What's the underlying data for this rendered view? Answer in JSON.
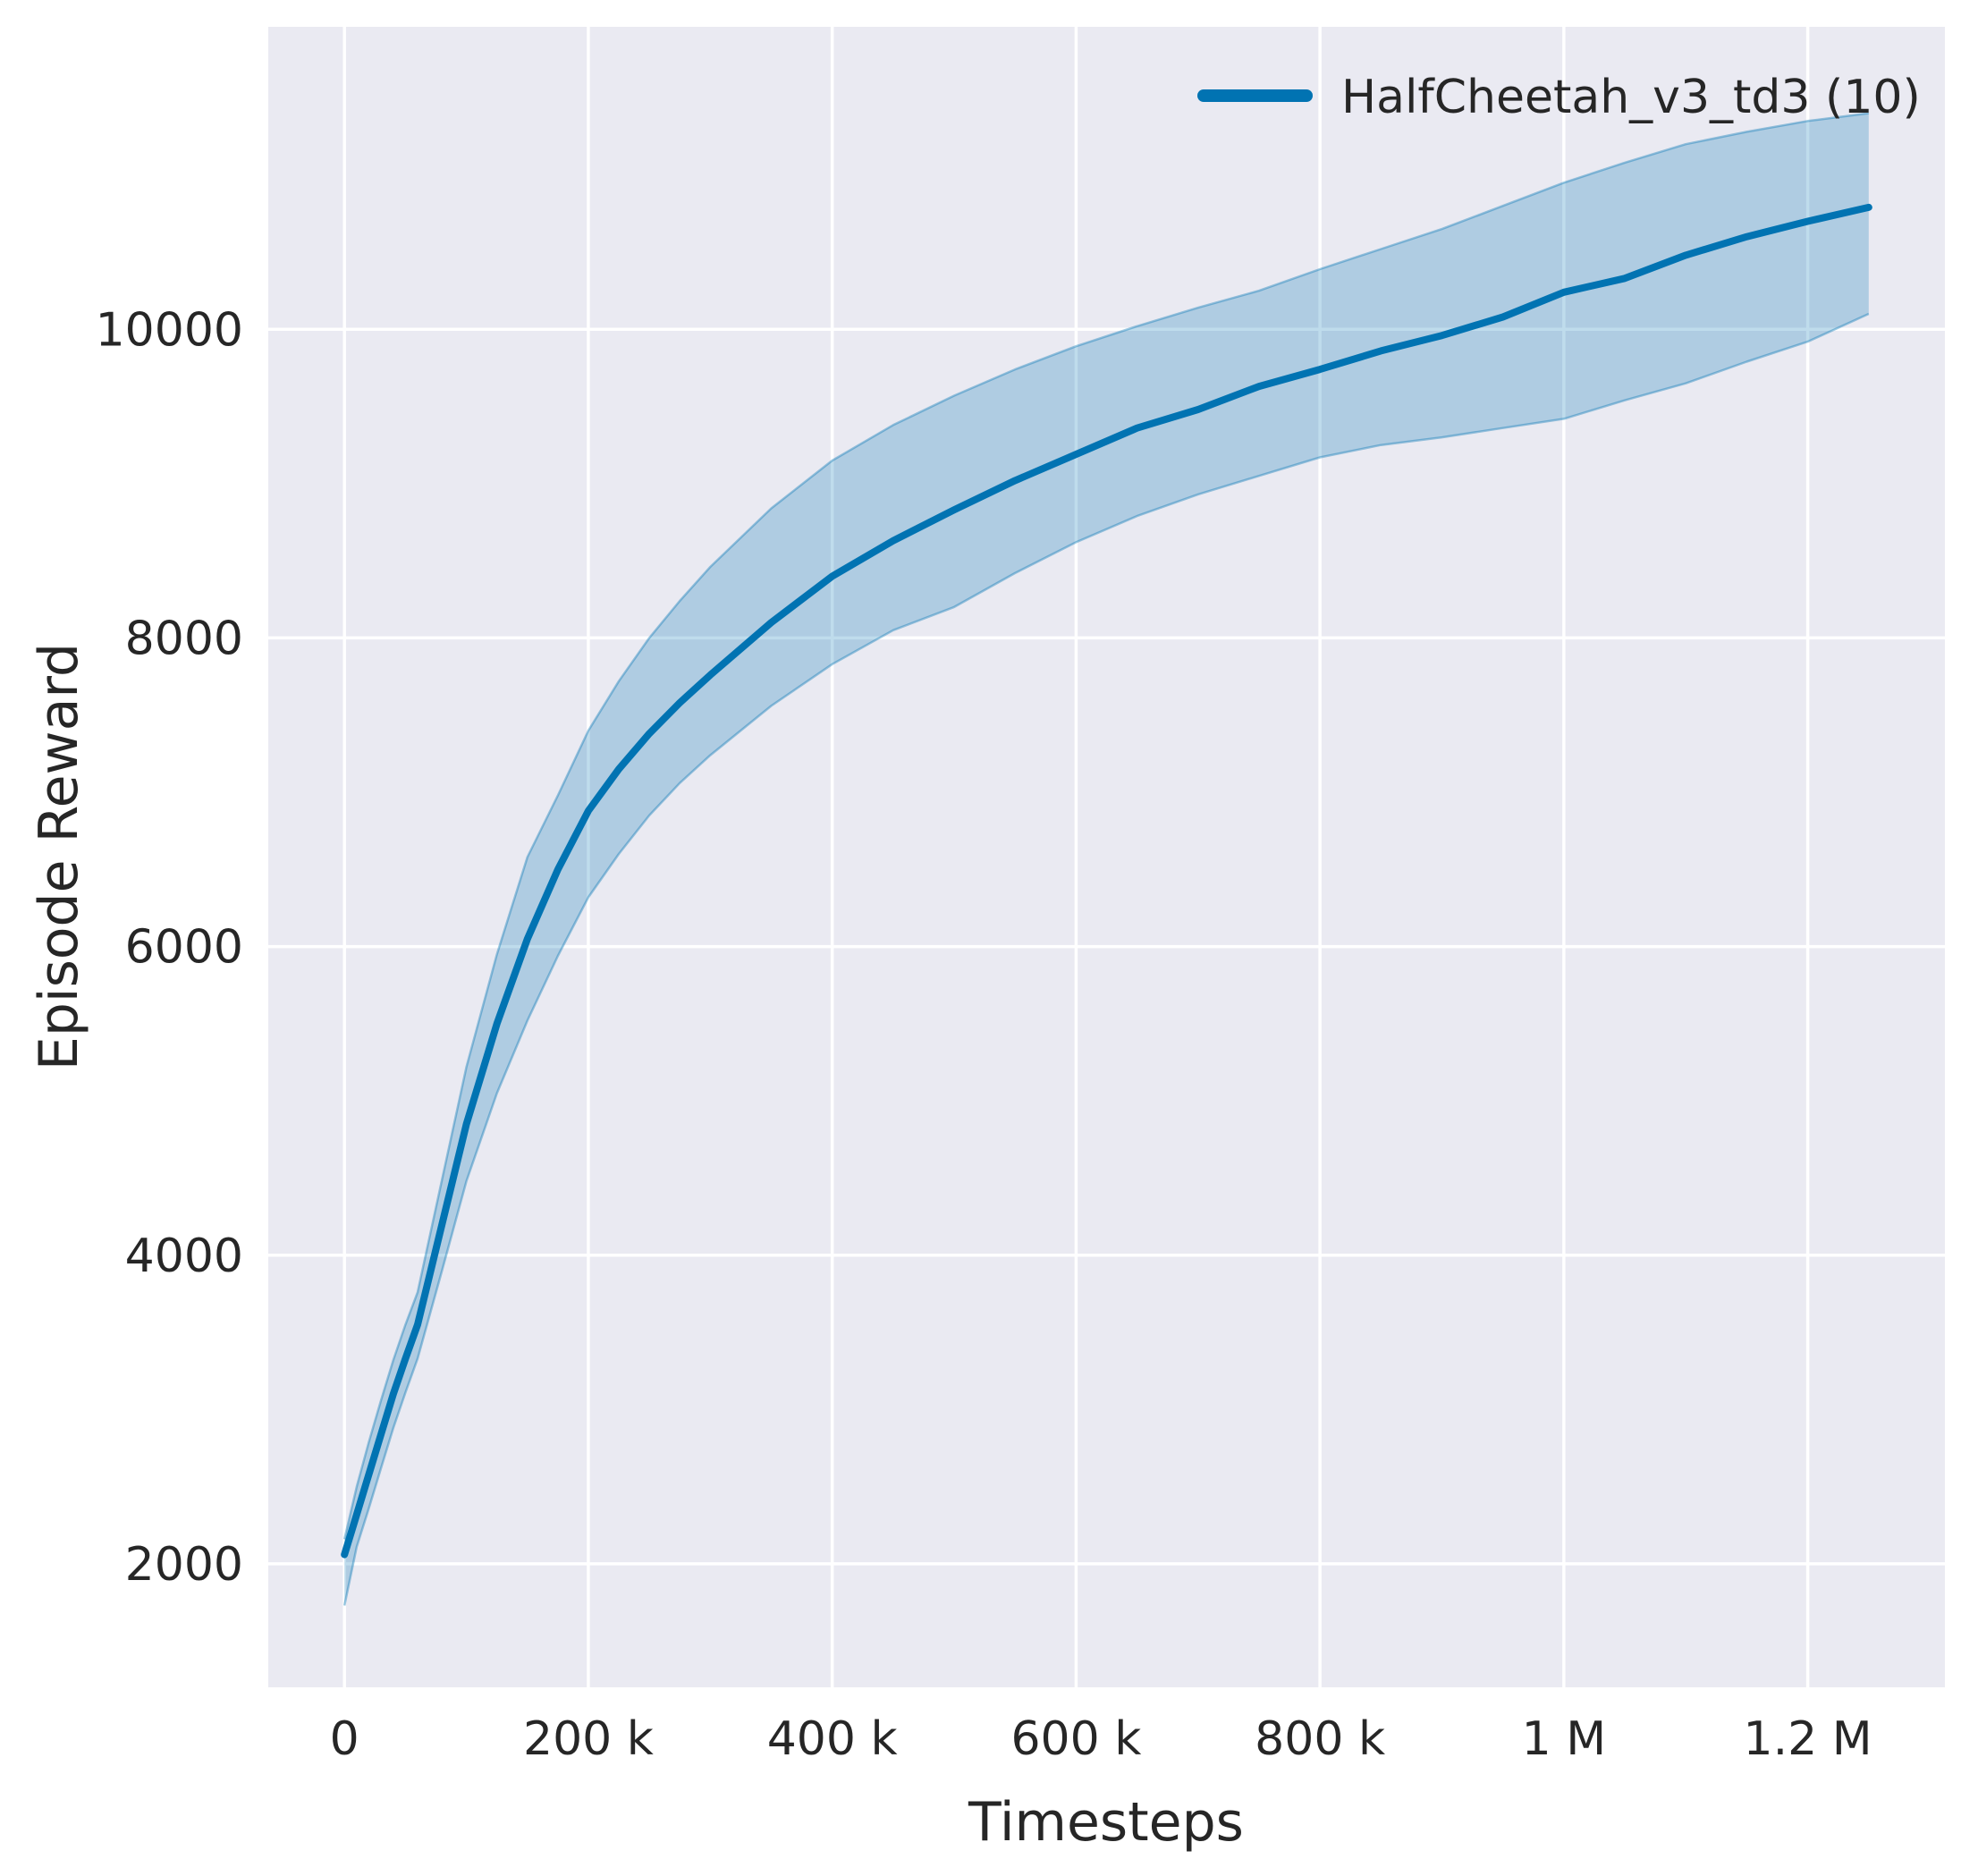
{
  "chart_data": {
    "type": "line",
    "title": "",
    "xlabel": "Timesteps",
    "ylabel": "Episode Reward",
    "legend": {
      "label": "HalfCheetah_v3_td3 (10)",
      "position": "upper-right"
    },
    "grid": true,
    "xlim": [
      -62500,
      1312500
    ],
    "ylim": [
      1200,
      11960
    ],
    "xticks": [
      {
        "value": 0,
        "label": "0"
      },
      {
        "value": 200000,
        "label": "200 k"
      },
      {
        "value": 400000,
        "label": "400 k"
      },
      {
        "value": 600000,
        "label": "600 k"
      },
      {
        "value": 800000,
        "label": "800 k"
      },
      {
        "value": 1000000,
        "label": "1 M"
      },
      {
        "value": 1200000,
        "label": "1.2 M"
      }
    ],
    "yticks": [
      {
        "value": 2000,
        "label": "2000"
      },
      {
        "value": 4000,
        "label": "4000"
      },
      {
        "value": 6000,
        "label": "6000"
      },
      {
        "value": 8000,
        "label": "8000"
      },
      {
        "value": 10000,
        "label": "10000"
      }
    ],
    "x": [
      0,
      10000,
      20000,
      30000,
      40000,
      50000,
      60000,
      80000,
      100000,
      125000,
      150000,
      175000,
      200000,
      225000,
      250000,
      275000,
      300000,
      350000,
      400000,
      450000,
      500000,
      550000,
      600000,
      650000,
      700000,
      750000,
      800000,
      850000,
      900000,
      950000,
      1000000,
      1050000,
      1100000,
      1150000,
      1200000,
      1250000
    ],
    "series": [
      {
        "name": "HalfCheetah_v3_td3 (10)",
        "mean": [
          2060,
          2320,
          2580,
          2840,
          3100,
          3330,
          3550,
          4200,
          4850,
          5500,
          6050,
          6500,
          6880,
          7150,
          7380,
          7580,
          7760,
          8100,
          8400,
          8630,
          8830,
          9020,
          9190,
          9360,
          9480,
          9630,
          9740,
          9860,
          9960,
          10080,
          10240,
          10330,
          10480,
          10600,
          10700,
          10790
        ],
        "band_low": [
          1730,
          2110,
          2360,
          2620,
          2880,
          3110,
          3330,
          3900,
          4480,
          5050,
          5520,
          5940,
          6320,
          6600,
          6850,
          7060,
          7240,
          7560,
          7830,
          8050,
          8200,
          8420,
          8620,
          8790,
          8930,
          9050,
          9170,
          9250,
          9300,
          9360,
          9420,
          9540,
          9650,
          9790,
          9920,
          10100
        ],
        "band_high": [
          2160,
          2500,
          2790,
          3060,
          3320,
          3550,
          3760,
          4490,
          5220,
          5950,
          6580,
          6980,
          7400,
          7720,
          8000,
          8240,
          8460,
          8840,
          9150,
          9380,
          9570,
          9740,
          9890,
          10020,
          10140,
          10250,
          10390,
          10520,
          10650,
          10800,
          10950,
          11080,
          11200,
          11280,
          11350,
          11400
        ]
      }
    ],
    "colors": {
      "line": "#0173b2",
      "band_fill": "rgba(1,115,178,0.25)",
      "band_edge": "rgba(1,115,178,0.38)",
      "plot_background": "#eaeaf2",
      "gridline": "#ffffff",
      "text": "#262626"
    }
  }
}
